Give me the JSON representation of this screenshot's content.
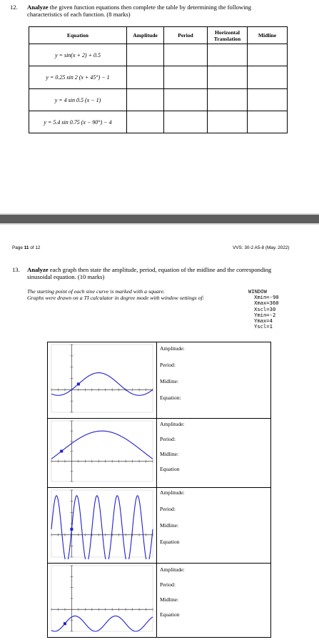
{
  "q12": {
    "number": "12.",
    "prompt_bold": "Analyze",
    "prompt_rest": " the given function equations then complete the table by determining the following",
    "prompt_line2": "characteristics of each function. (8 marks)",
    "headers": [
      "Equation",
      "Amplitude",
      "Period",
      "Horizontal Translation",
      "Midline"
    ],
    "rows": [
      "y = sin(x + 2) + 0.5",
      "y = 0.25 sin 2 (x + 45°) − 1",
      "y = 4 sin 0.5 (x − 1)",
      "y = 5.4 sin 0.75 (x − 90°) − 4"
    ]
  },
  "footer": {
    "page_prefix": "Page ",
    "page_num": "11",
    "page_suffix": " of 12",
    "code": "VVS: 30-2 A5-8 (May. 2022)"
  },
  "q13": {
    "number": "13.",
    "prompt_bold": "Analyze",
    "prompt_rest": " each graph then state the amplitude, period, equation of the midline and the corresponding",
    "prompt_line2": "sinusoidal equation. (10 marks)",
    "note1": "The starting point of each sine curve is marked with a square.",
    "note2": "Graphs were drawn on a TI calculator in degree mode with window settings of:",
    "window": [
      "WINDOW",
      "Xmin=-90",
      "Xmax=360",
      "Xscl=30",
      "Ymin=-2",
      "Ymax=4",
      "Yscl=1"
    ],
    "labels": [
      [
        "Amplitude:",
        "Period:",
        "Midline:",
        "Equation:"
      ],
      [
        "Amplitude:",
        "Period:",
        "Midline:",
        "Equation"
      ],
      [
        "Amplitude:",
        "Period:",
        "Midline:",
        "Equation"
      ],
      [
        "Amplitude:",
        "Period:",
        "Midline:",
        "Equation"
      ]
    ]
  },
  "colors": {
    "curve": "#1f1fd0",
    "separator": "#5e5e5e"
  }
}
